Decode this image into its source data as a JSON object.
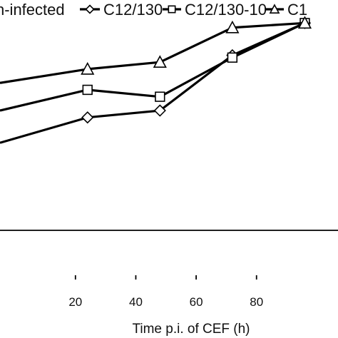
{
  "chart_data": {
    "type": "line",
    "title": "",
    "xlabel": "Time p.i. of CEF (h)",
    "ylabel": "",
    "xlim": [
      -5,
      107
    ],
    "ylim": [
      0,
      100
    ],
    "x_ticks": [
      20,
      40,
      60,
      80
    ],
    "x_tick_labels": [
      "20",
      "40",
      "60",
      "80"
    ],
    "legend": {
      "placement": "top",
      "entries": [
        {
          "label": "n-infected",
          "marker": "none"
        },
        {
          "label": "C12/130",
          "marker": "diamond"
        },
        {
          "label": "C12/130-10",
          "marker": "square"
        },
        {
          "label": "C1",
          "marker": "triangle"
        }
      ]
    },
    "series": [
      {
        "name": "n-infected",
        "marker": "none",
        "x": [],
        "y": []
      },
      {
        "name": "C12/130",
        "marker": "diamond",
        "x": [
          24,
          48,
          72,
          96
        ],
        "y": [
          49,
          52,
          76,
          90
        ]
      },
      {
        "name": "C12/130-10",
        "marker": "square",
        "x": [
          24,
          48,
          72,
          96
        ],
        "y": [
          61,
          58,
          75,
          90
        ]
      },
      {
        "name": "C1",
        "marker": "triangle",
        "x": [
          24,
          48,
          72,
          96
        ],
        "y": [
          70,
          73,
          88,
          90
        ]
      }
    ],
    "edge_lines": [
      {
        "series": "C12/130",
        "from_y": 38
      },
      {
        "series": "C12/130-10",
        "from_y": 52
      },
      {
        "series": "C1",
        "from_y": 64
      }
    ],
    "grid": false
  }
}
